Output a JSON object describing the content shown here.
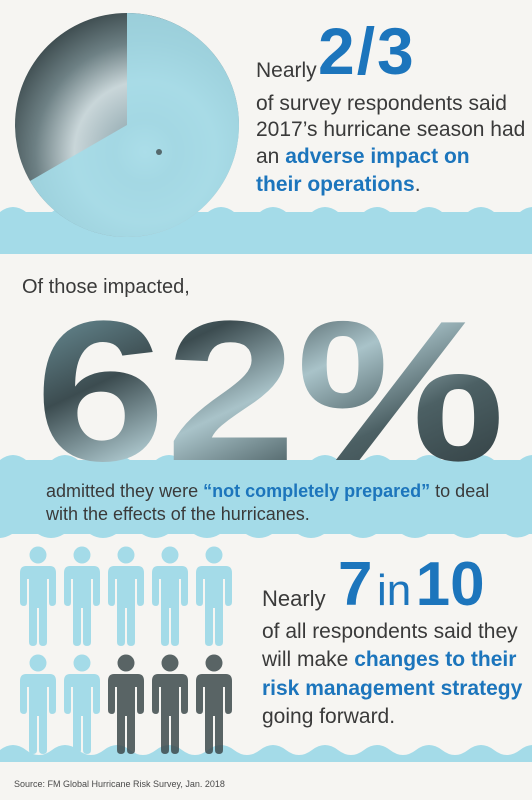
{
  "section1": {
    "nearly": "Nearly",
    "stat": "2/3",
    "line1": "of survey respondents said",
    "line2": "2017’s hurricane season had",
    "line3_plain": "an",
    "line3_bold": "adverse impact on",
    "line4_bold": "their operations",
    "line4_end": ".",
    "pie_fraction": 0.6667
  },
  "section2": {
    "intro": "Of those impacted,",
    "stat": "62%",
    "line1_plain": "admitted they were",
    "line1_bold": "“not completely prepared”",
    "line1_end": "to deal",
    "line2": "with the effects of the hurricanes."
  },
  "section3": {
    "nearly": "Nearly",
    "stat_num": "7",
    "stat_in": "in",
    "stat_den": "10",
    "line1": "of all respondents said they",
    "line2_plain": "will make",
    "line2_bold": "changes to their",
    "line3_bold": "risk management strategy",
    "line4": "going forward.",
    "people_total": 10,
    "people_highlighted": 7
  },
  "source": "Source: FM Global Hurricane Risk Survey, Jan. 2018",
  "colors": {
    "accent_blue": "#1c75bc",
    "light_blue": "#a4dbe8",
    "background": "#f6f5f2",
    "storm_dark": "#3d4a4c"
  }
}
